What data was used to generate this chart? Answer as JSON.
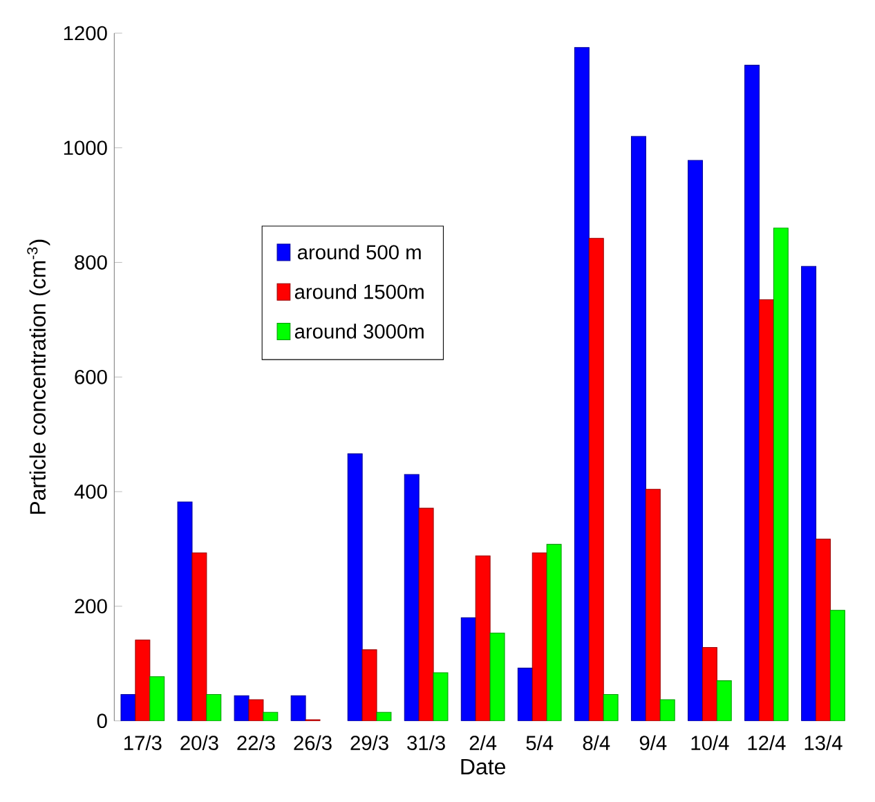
{
  "chart_data": {
    "type": "bar",
    "xlabel": "Date",
    "ylabel": "Particle concentration (cm$^{-3}$)",
    "categories": [
      "17/3",
      "20/3",
      "22/3",
      "26/3",
      "29/3",
      "31/3",
      "2/4",
      "5/4",
      "8/4",
      "9/4",
      "10/4",
      "12/4",
      "13/4"
    ],
    "series": [
      {
        "name": "around 500 m",
        "color": "#0000ff",
        "values": [
          46,
          382,
          44,
          44,
          466,
          430,
          180,
          92,
          1175,
          1020,
          978,
          1144,
          793
        ]
      },
      {
        "name": "around 1500m",
        "color": "#ff0000",
        "values": [
          141,
          293,
          37,
          2,
          124,
          371,
          288,
          293,
          842,
          404,
          128,
          735,
          317
        ]
      },
      {
        "name": "around 3000m",
        "color": "#00ff00",
        "values": [
          77,
          46,
          15,
          null,
          15,
          84,
          153,
          308,
          46,
          37,
          70,
          860,
          193
        ]
      }
    ],
    "ylim": [
      0,
      1200
    ],
    "yticks": [
      0,
      200,
      400,
      600,
      800,
      1000,
      1200
    ],
    "grid": false,
    "legend": "top left"
  }
}
